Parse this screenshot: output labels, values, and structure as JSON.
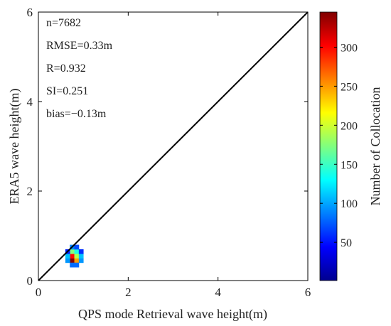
{
  "chart_data": {
    "type": "heatmap",
    "xlabel": "QPS mode Retrieval wave height(m)",
    "ylabel": "ERA5 wave height(m)",
    "xlim": [
      0,
      6
    ],
    "ylim": [
      0,
      6
    ],
    "xticks": [
      0,
      2,
      4,
      6
    ],
    "yticks": [
      0,
      2,
      4,
      6
    ],
    "grid": false,
    "reference_line": "y = x",
    "statistics": [
      "n=7682",
      "RMSE=0.33m",
      "R=0.932",
      "SI=0.251",
      "bias=−0.13m"
    ],
    "colorbar": {
      "label": "Number of Collocation",
      "ticks": [
        50,
        100,
        150,
        200,
        250,
        300
      ],
      "range": [
        1,
        345
      ],
      "colormap": "jet"
    },
    "bin_size": 0.1,
    "bins": [
      {
        "x": 0.75,
        "y": 0.45,
        "count": 345
      },
      {
        "x": 0.85,
        "y": 0.45,
        "count": 250
      },
      {
        "x": 0.75,
        "y": 0.55,
        "count": 300
      },
      {
        "x": 0.85,
        "y": 0.55,
        "count": 190
      },
      {
        "x": 0.75,
        "y": 0.65,
        "count": 175
      },
      {
        "x": 0.85,
        "y": 0.65,
        "count": 140
      },
      {
        "x": 0.65,
        "y": 0.45,
        "count": 95
      },
      {
        "x": 0.65,
        "y": 0.55,
        "count": 110
      },
      {
        "x": 0.95,
        "y": 0.45,
        "count": 95
      },
      {
        "x": 0.95,
        "y": 0.55,
        "count": 110
      },
      {
        "x": 0.75,
        "y": 0.35,
        "count": 80
      },
      {
        "x": 0.85,
        "y": 0.35,
        "count": 80
      },
      {
        "x": 0.75,
        "y": 0.75,
        "count": 90
      },
      {
        "x": 0.85,
        "y": 0.75,
        "count": 70
      },
      {
        "x": 0.95,
        "y": 0.65,
        "count": 60
      },
      {
        "x": 0.65,
        "y": 0.65,
        "count": 55
      }
    ]
  }
}
